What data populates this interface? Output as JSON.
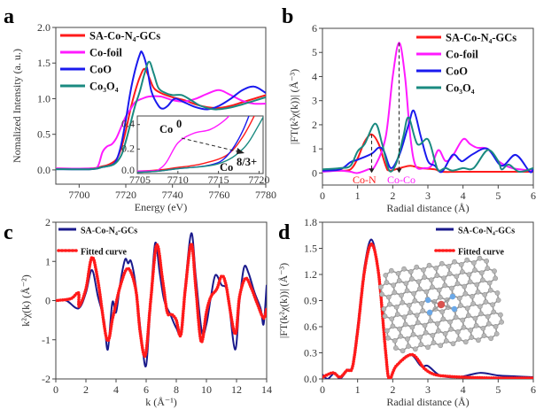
{
  "colors": {
    "sa": "#ff1a1a",
    "foil": "#ff1aff",
    "coo": "#1a1aee",
    "co3o4": "#1a8a80",
    "data_navy": "#1a1a8c",
    "fit": "#ff1a1a"
  },
  "chart_data": [
    {
      "panel": "a",
      "type": "line",
      "xlabel": "Energy (eV)",
      "ylabel": "Nomalized Intensity (a. u.)",
      "xlim": [
        7690,
        7780
      ],
      "ylim": [
        -0.2,
        2.0
      ],
      "xticks": [
        "7700",
        "7720",
        "7740",
        "7760",
        "7780"
      ],
      "xtick_values": [
        7700,
        7720,
        7740,
        7760,
        7780
      ],
      "yticks": [
        "0.0",
        "0.5",
        "1.0",
        "1.5",
        "2.0"
      ],
      "ytick_values": [
        0,
        0.5,
        1.0,
        1.5,
        2.0
      ],
      "legend_position": "top-left",
      "series": [
        {
          "name": "SA-Co-N₄-GCs",
          "color_key": "sa",
          "x": [
            7690,
            7705,
            7710,
            7713,
            7716,
            7718,
            7720,
            7722,
            7724,
            7726,
            7728,
            7730,
            7732,
            7735,
            7740,
            7745,
            7750,
            7755,
            7760,
            7765,
            7770,
            7775,
            7780
          ],
          "y": [
            0.02,
            0.02,
            0.05,
            0.08,
            0.15,
            0.3,
            0.55,
            0.85,
            1.1,
            1.3,
            1.42,
            1.3,
            1.15,
            1.08,
            1.02,
            0.98,
            0.92,
            0.88,
            0.87,
            0.9,
            0.95,
            1.0,
            1.05
          ]
        },
        {
          "name": "Co-foil",
          "color_key": "foil",
          "x": [
            7690,
            7705,
            7708,
            7710,
            7712,
            7714,
            7716,
            7718,
            7720,
            7722,
            7724,
            7727,
            7730,
            7735,
            7740,
            7745,
            7750,
            7755,
            7760,
            7765,
            7770,
            7775,
            7780
          ],
          "y": [
            0.02,
            0.02,
            0.05,
            0.25,
            0.33,
            0.36,
            0.45,
            0.6,
            0.75,
            0.85,
            0.95,
            1.0,
            1.03,
            1.03,
            0.98,
            0.96,
            1.0,
            1.07,
            1.12,
            1.05,
            0.97,
            0.93,
            0.93
          ]
        },
        {
          "name": "CoO",
          "color_key": "coo",
          "x": [
            7690,
            7705,
            7710,
            7714,
            7716,
            7718,
            7720,
            7722,
            7724,
            7726,
            7727,
            7729,
            7731,
            7734,
            7736,
            7738,
            7741,
            7745,
            7750,
            7755,
            7760,
            7765,
            7770,
            7775,
            7780
          ],
          "y": [
            0.01,
            0.01,
            0.04,
            0.07,
            0.14,
            0.35,
            0.7,
            1.1,
            1.4,
            1.62,
            1.65,
            1.45,
            1.1,
            0.9,
            0.86,
            0.9,
            1.0,
            0.95,
            0.88,
            0.85,
            0.9,
            1.0,
            1.12,
            1.17,
            1.08
          ]
        },
        {
          "name": "Co₃O₄",
          "color_key": "co3o4",
          "x": [
            7690,
            7705,
            7710,
            7715,
            7718,
            7720,
            7722,
            7724,
            7726,
            7728,
            7730,
            7732,
            7734,
            7737,
            7740,
            7744,
            7748,
            7752,
            7758,
            7764,
            7770,
            7775,
            7780
          ],
          "y": [
            0.01,
            0.01,
            0.04,
            0.08,
            0.2,
            0.4,
            0.65,
            0.9,
            1.1,
            1.35,
            1.52,
            1.35,
            1.15,
            1.08,
            1.05,
            1.05,
            0.98,
            0.9,
            0.85,
            0.87,
            0.92,
            0.97,
            1.02
          ]
        }
      ],
      "inset": {
        "xlim": [
          7705,
          7720.5
        ],
        "ylim": [
          0,
          0.47
        ],
        "xticks": [
          "7705",
          "7710",
          "7715",
          "7720"
        ],
        "xtick_values": [
          7705,
          7710,
          7715,
          7720
        ],
        "yticks": [
          "0.0",
          "0.2",
          "0.4"
        ],
        "ytick_values": [
          0,
          0.2,
          0.4
        ],
        "annotation_start": "Co",
        "annotation_start_sup": "0",
        "annotation_end": "Co",
        "annotation_end_sup": "8/3+"
      }
    },
    {
      "panel": "b",
      "type": "line",
      "xlabel": "Radial distance (Å)",
      "ylabel": "|FT(k²χ(k))| (Å⁻³)",
      "xlim": [
        0,
        6
      ],
      "ylim": [
        -0.5,
        6
      ],
      "xticks": [
        "0",
        "1",
        "2",
        "3",
        "4",
        "5",
        "6"
      ],
      "xtick_values": [
        0,
        1,
        2,
        3,
        4,
        5,
        6
      ],
      "yticks": [
        "0",
        "1",
        "2",
        "3",
        "4",
        "5",
        "6"
      ],
      "ytick_values": [
        0,
        1,
        2,
        3,
        4,
        5,
        6
      ],
      "legend_position": "top-right",
      "annotations": [
        {
          "text": "Co-N",
          "x": 1.4,
          "peak": 1.6,
          "color_key": "sa"
        },
        {
          "text": "Co-Co",
          "x": 2.18,
          "peak": 5.4,
          "color_key": "foil"
        }
      ],
      "series": [
        {
          "name": "SA-Co-N₄-GCs",
          "color_key": "sa",
          "x": [
            0,
            0.5,
            0.8,
            1.0,
            1.2,
            1.4,
            1.6,
            1.8,
            1.9,
            2.2,
            2.5,
            2.8,
            3.2,
            3.4,
            4,
            5,
            6
          ],
          "y": [
            0.1,
            0.1,
            0.15,
            0.6,
            1.3,
            1.6,
            1.2,
            0.3,
            0.1,
            0.2,
            0.3,
            0.2,
            0.15,
            0.05,
            0.05,
            0.05,
            0.05
          ]
        },
        {
          "name": "Co-foil",
          "color_key": "foil",
          "x": [
            0,
            0.5,
            0.8,
            1.0,
            1.3,
            1.5,
            1.8,
            2.0,
            2.18,
            2.35,
            2.5,
            2.65,
            2.9,
            3.1,
            3.3,
            3.5,
            3.7,
            4.0,
            4.2,
            4.4,
            4.7,
            5.0,
            5.4,
            6
          ],
          "y": [
            0.05,
            0.1,
            0.05,
            0.0,
            0.15,
            0.3,
            1.5,
            4.0,
            5.4,
            4.0,
            1.5,
            0.3,
            0.2,
            0.3,
            0.95,
            0.5,
            0.7,
            1.4,
            1.2,
            1.05,
            1.0,
            0.5,
            0.2,
            0.1
          ]
        },
        {
          "name": "CoO",
          "color_key": "coo",
          "x": [
            0,
            0.5,
            0.8,
            1.0,
            1.4,
            1.6,
            1.75,
            1.95,
            2.2,
            2.45,
            2.6,
            2.8,
            3.0,
            3.2,
            3.4,
            3.7,
            3.9,
            4.0,
            4.3,
            4.7,
            5.1,
            5.5,
            5.9,
            6
          ],
          "y": [
            0.1,
            0.15,
            0.45,
            0.55,
            0.8,
            1.05,
            0.9,
            0.2,
            0.8,
            2.0,
            2.58,
            1.5,
            0.5,
            0.3,
            0.05,
            0.75,
            0.55,
            0.5,
            0.8,
            1.0,
            0.3,
            0.75,
            0.05,
            0.2
          ]
        },
        {
          "name": "Co₃O₄",
          "color_key": "co3o4",
          "x": [
            0,
            0.5,
            0.8,
            1.0,
            1.2,
            1.5,
            1.7,
            1.9,
            2.1,
            2.3,
            2.45,
            2.7,
            3.0,
            3.2,
            3.3,
            3.5,
            3.7,
            4.0,
            4.3,
            4.7,
            5.0,
            5.1,
            5.3,
            5.6,
            6
          ],
          "y": [
            0.15,
            0.2,
            0.3,
            0.9,
            1.2,
            2.05,
            1.2,
            0.1,
            0.4,
            1.5,
            2.3,
            1.2,
            1.4,
            0.5,
            0.1,
            0.2,
            0.1,
            0.2,
            0.2,
            0.95,
            0.5,
            0.15,
            0.35,
            0.05,
            0.2
          ]
        }
      ]
    },
    {
      "panel": "c",
      "type": "line",
      "xlabel": "k (Å⁻¹)",
      "ylabel": "k²χ(k) (Å⁻²)",
      "xlim": [
        0,
        14
      ],
      "ylim": [
        -2,
        2
      ],
      "xticks": [
        "0",
        "2",
        "4",
        "6",
        "8",
        "10",
        "12",
        "14"
      ],
      "xtick_values": [
        0,
        2,
        4,
        6,
        8,
        10,
        12,
        14
      ],
      "yticks": [
        "-2",
        "-1",
        "0",
        "1",
        "2"
      ],
      "ytick_values": [
        -2,
        -1,
        0,
        1,
        2
      ],
      "legend_position": "top-left",
      "series": [
        {
          "name": "SA-Co-N₄-GCs",
          "color_key": "data_navy",
          "x": [
            0,
            0.7,
            1.5,
            2,
            2.4,
            2.8,
            3.2,
            3.45,
            3.75,
            4.0,
            4.3,
            4.6,
            4.8,
            5.0,
            5.3,
            5.7,
            6.0,
            6.3,
            6.6,
            6.9,
            7.2,
            7.6,
            8.0,
            8.3,
            8.6,
            9.0,
            9.3,
            9.7,
            10.0,
            10.3,
            10.6,
            11.0,
            11.4,
            11.9,
            12.2,
            12.5,
            12.8,
            13.2,
            13.6,
            13.8,
            14
          ],
          "y": [
            0,
            0,
            -0.2,
            0.2,
            0.78,
            0.1,
            -0.5,
            -1.25,
            -0.05,
            -0.3,
            0.5,
            1.05,
            0.95,
            1.0,
            0.4,
            -1.0,
            -1.65,
            0.0,
            1.47,
            0.7,
            0,
            -0.35,
            -0.7,
            -0.8,
            0.4,
            1.72,
            0.6,
            -0.8,
            -0.6,
            0.1,
            0.65,
            0.4,
            0.2,
            -1.25,
            0,
            0.85,
            0.7,
            0.2,
            -0.2,
            -0.6,
            0.4
          ]
        },
        {
          "name": "Fitted curve",
          "color_key": "fit",
          "markers": true,
          "x": [
            0,
            1,
            1.5,
            1.55,
            2,
            2.4,
            2.8,
            3.4,
            3.8,
            4.3,
            4.8,
            5.3,
            5.6,
            5.95,
            6.3,
            6.7,
            7.1,
            7.4,
            7.7,
            8.0,
            8.3,
            8.6,
            9.0,
            9.3,
            9.65,
            10.0,
            10.3,
            10.7,
            11.0,
            11.3,
            11.9,
            12.2,
            12.6,
            13.0,
            13.4,
            13.8,
            14
          ],
          "y": [
            0,
            0.05,
            0.2,
            -0.15,
            0.3,
            1.1,
            0.5,
            -1.0,
            -0.4,
            0.4,
            0.82,
            0.3,
            -0.8,
            -1.4,
            0,
            1.42,
            0.5,
            -0.3,
            -0.35,
            -0.5,
            -0.88,
            0.3,
            1.45,
            0.3,
            -1.05,
            -0.3,
            0.1,
            0.3,
            0.62,
            0.4,
            -0.85,
            0.1,
            0.57,
            0.3,
            -0.1,
            -0.45,
            -0.2
          ]
        }
      ]
    },
    {
      "panel": "d",
      "type": "line",
      "xlabel": "Radial distance (Å)",
      "ylabel": "|FT(k²χ(k))| (Å⁻³)",
      "xlim": [
        0,
        6
      ],
      "ylim": [
        0,
        1.8
      ],
      "xticks": [
        "0",
        "1",
        "2",
        "3",
        "4",
        "5",
        "6"
      ],
      "xtick_values": [
        0,
        1,
        2,
        3,
        4,
        5,
        6
      ],
      "yticks": [
        "0.0",
        "0.3",
        "0.6",
        "0.9",
        "1.2",
        "1.5",
        "1.8"
      ],
      "ytick_values": [
        0,
        0.3,
        0.6,
        0.9,
        1.2,
        1.5,
        1.8
      ],
      "legend_position": "top-right",
      "series": [
        {
          "name": "SA-Co-N₄-GCs",
          "color_key": "data_navy",
          "x": [
            0,
            0.15,
            0.35,
            0.5,
            0.7,
            0.85,
            1.0,
            1.2,
            1.4,
            1.6,
            1.8,
            1.9,
            2.1,
            2.5,
            2.8,
            3.0,
            3.3,
            3.6,
            4,
            4.5,
            5,
            5.5,
            6
          ],
          "y": [
            0.05,
            0.0,
            0.07,
            0.0,
            0.1,
            0.15,
            0.6,
            1.3,
            1.6,
            1.2,
            0.3,
            0.0,
            0.15,
            0.28,
            0.15,
            0.15,
            0.05,
            0.02,
            0.03,
            0.07,
            0.04,
            0.03,
            0.02
          ]
        },
        {
          "name": "Fitted curve",
          "color_key": "fit",
          "markers": true,
          "x": [
            0,
            0.3,
            0.5,
            0.7,
            0.85,
            1.0,
            1.2,
            1.4,
            1.6,
            1.8,
            1.9,
            2.1,
            2.55,
            2.9,
            3.2,
            3.6,
            4,
            5,
            6
          ],
          "y": [
            0.02,
            0.07,
            0.02,
            0.1,
            0.13,
            0.55,
            1.25,
            1.55,
            1.2,
            0.3,
            0.0,
            0.15,
            0.28,
            0.12,
            0.05,
            0.03,
            0.02,
            0.01,
            0.01
          ]
        }
      ]
    }
  ],
  "panel_labels": [
    "a",
    "b",
    "c",
    "d"
  ]
}
